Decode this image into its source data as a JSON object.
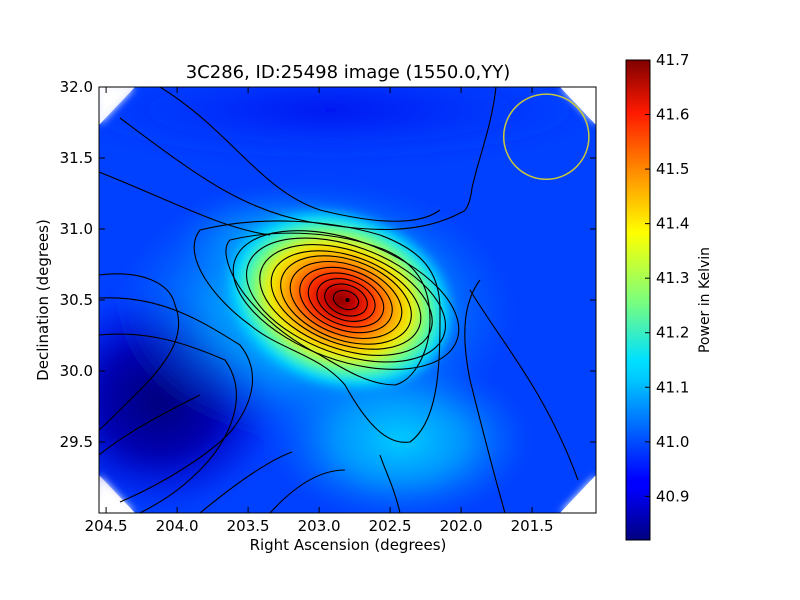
{
  "chart_data": {
    "type": "heatmap",
    "title": "3C286, ID:25498 image (1550.0,YY)",
    "xlabel": "Right Ascension (degrees)",
    "ylabel": "Declination (degrees)",
    "xlim": [
      204.55,
      201.05
    ],
    "ylim": [
      29.0,
      32.0
    ],
    "x_ticks": [
      204.5,
      204.0,
      203.5,
      203.0,
      202.5,
      202.0,
      201.5
    ],
    "x_tick_labels": [
      "204.5",
      "204.0",
      "203.5",
      "203.0",
      "202.5",
      "202.0",
      "201.5"
    ],
    "y_ticks": [
      29.5,
      30.0,
      30.5,
      31.0,
      31.5,
      32.0
    ],
    "y_tick_labels": [
      "29.5",
      "30.0",
      "30.5",
      "31.0",
      "31.5",
      "32.0"
    ],
    "colorbar": {
      "label": "Power in Kelvin",
      "range": [
        40.82,
        41.7
      ],
      "ticks": [
        40.9,
        41.0,
        41.1,
        41.2,
        41.3,
        41.4,
        41.5,
        41.6,
        41.7
      ],
      "tick_labels": [
        "40.9",
        "41.0",
        "41.1",
        "41.2",
        "41.3",
        "41.4",
        "41.5",
        "41.6",
        "41.7"
      ],
      "colormap": "jet"
    },
    "features": {
      "peak": {
        "ra": 202.8,
        "dec": 30.5,
        "value": 41.69
      },
      "minimum_region": {
        "ra": 204.35,
        "dec": 29.9,
        "value": 40.83
      },
      "beam_circle": {
        "ra": 201.4,
        "dec": 31.65,
        "radius_deg": 0.3,
        "color": "#c8c83c"
      }
    },
    "contours": "on",
    "grid": "off",
    "colors": {
      "contour": "#000000",
      "beam": "#c8c83c",
      "frame": "#000000"
    }
  }
}
